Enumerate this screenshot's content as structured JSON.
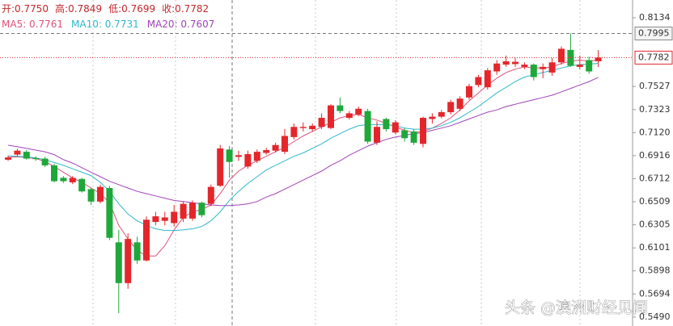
{
  "chart_data": {
    "type": "candlestick",
    "ohlc_header": [
      "开:0.7750",
      "高:0.7849",
      "低:0.7699",
      "收:0.7782"
    ],
    "header_color": "#c0282c",
    "watermark": "头条 @澳洲财经见闻",
    "up_color": "#e4262b",
    "down_color": "#1fa83a",
    "open": [
      0.688,
      0.6925,
      0.695,
      0.6895,
      0.689,
      0.683,
      0.672,
      0.668,
      0.671,
      0.662,
      0.651,
      0.663,
      0.615,
      0.579,
      0.615,
      0.599,
      0.633,
      0.634,
      0.632,
      0.636,
      0.636,
      0.65,
      0.649,
      0.665,
      0.697,
      0.6905,
      0.682,
      0.687,
      0.694,
      0.696,
      0.695,
      0.708,
      0.716,
      0.715,
      0.717,
      0.716,
      0.736,
      0.725,
      0.728,
      0.731,
      0.703,
      0.724,
      0.712,
      0.714,
      0.713,
      0.702,
      0.724,
      0.726,
      0.73,
      0.733,
      0.743,
      0.754,
      0.752,
      0.766,
      0.772,
      0.7725,
      0.77,
      0.772,
      0.768,
      0.765,
      0.774,
      0.785,
      0.77,
      0.776,
      0.775
    ],
    "high": [
      0.6915,
      0.6975,
      0.6965,
      0.691,
      0.6905,
      0.6845,
      0.6735,
      0.6735,
      0.672,
      0.6635,
      0.666,
      0.665,
      0.626,
      0.623,
      0.62,
      0.638,
      0.642,
      0.642,
      0.648,
      0.651,
      0.652,
      0.651,
      0.666,
      0.701,
      0.7,
      0.696,
      0.696,
      0.697,
      0.6985,
      0.703,
      0.715,
      0.72,
      0.721,
      0.72,
      0.729,
      0.737,
      0.743,
      0.731,
      0.735,
      0.733,
      0.722,
      0.725,
      0.723,
      0.716,
      0.715,
      0.726,
      0.729,
      0.732,
      0.741,
      0.744,
      0.755,
      0.763,
      0.769,
      0.776,
      0.78,
      0.778,
      0.774,
      0.773,
      0.773,
      0.778,
      0.788,
      0.7995,
      0.78,
      0.779,
      0.7849
    ],
    "low": [
      0.687,
      0.691,
      0.688,
      0.687,
      0.6815,
      0.668,
      0.6675,
      0.6665,
      0.659,
      0.648,
      0.6495,
      0.617,
      0.5525,
      0.574,
      0.596,
      0.598,
      0.63,
      0.63,
      0.629,
      0.633,
      0.634,
      0.637,
      0.647,
      0.664,
      0.672,
      0.687,
      0.68,
      0.685,
      0.6925,
      0.6945,
      0.693,
      0.706,
      0.713,
      0.713,
      0.715,
      0.715,
      0.729,
      0.7235,
      0.7265,
      0.702,
      0.701,
      0.713,
      0.7105,
      0.704,
      0.701,
      0.699,
      0.72,
      0.7245,
      0.728,
      0.731,
      0.741,
      0.752,
      0.75,
      0.763,
      0.77,
      0.77,
      0.768,
      0.758,
      0.76,
      0.762,
      0.772,
      0.77,
      0.768,
      0.764,
      0.7699
    ],
    "close": [
      0.69,
      0.696,
      0.689,
      0.6885,
      0.683,
      0.669,
      0.669,
      0.672,
      0.66,
      0.651,
      0.664,
      0.619,
      0.579,
      0.618,
      0.599,
      0.635,
      0.638,
      0.637,
      0.642,
      0.649,
      0.65,
      0.639,
      0.664,
      0.698,
      0.686,
      0.692,
      0.693,
      0.695,
      0.6965,
      0.701,
      0.709,
      0.717,
      0.717,
      0.718,
      0.725,
      0.736,
      0.731,
      0.729,
      0.733,
      0.704,
      0.717,
      0.715,
      0.721,
      0.707,
      0.703,
      0.725,
      0.726,
      0.73,
      0.739,
      0.742,
      0.753,
      0.761,
      0.767,
      0.773,
      0.775,
      0.7745,
      0.772,
      0.761,
      0.77,
      0.774,
      0.786,
      0.771,
      0.772,
      0.766,
      0.7782
    ],
    "series": [
      {
        "name": "MA5: 0.7761",
        "color": "#e0507a",
        "values": [
          0.6901,
          0.6905,
          0.69,
          0.689,
          0.6865,
          0.682,
          0.677,
          0.672,
          0.668,
          0.663,
          0.658,
          0.65,
          0.63,
          0.618,
          0.608,
          0.603,
          0.603,
          0.612,
          0.626,
          0.637,
          0.642,
          0.644,
          0.648,
          0.658,
          0.67,
          0.678,
          0.683,
          0.687,
          0.691,
          0.695,
          0.699,
          0.704,
          0.709,
          0.713,
          0.717,
          0.721,
          0.725,
          0.727,
          0.728,
          0.725,
          0.723,
          0.72,
          0.717,
          0.714,
          0.712,
          0.713,
          0.716,
          0.72,
          0.725,
          0.732,
          0.74,
          0.747,
          0.754,
          0.76,
          0.765,
          0.768,
          0.77,
          0.769,
          0.769,
          0.77,
          0.773,
          0.775,
          0.776,
          0.775,
          0.7761
        ]
      },
      {
        "name": "MA10: 0.7731",
        "color": "#2fb8cc",
        "values": [
          0.6915,
          0.691,
          0.6905,
          0.6895,
          0.688,
          0.6855,
          0.683,
          0.68,
          0.677,
          0.674,
          0.668,
          0.66,
          0.649,
          0.64,
          0.634,
          0.63,
          0.627,
          0.6255,
          0.6255,
          0.626,
          0.627,
          0.629,
          0.634,
          0.642,
          0.652,
          0.66,
          0.667,
          0.673,
          0.679,
          0.683,
          0.687,
          0.691,
          0.694,
          0.698,
          0.702,
          0.707,
          0.711,
          0.715,
          0.718,
          0.719,
          0.719,
          0.719,
          0.718,
          0.716,
          0.715,
          0.715,
          0.716,
          0.718,
          0.721,
          0.725,
          0.73,
          0.735,
          0.741,
          0.747,
          0.752,
          0.757,
          0.761,
          0.763,
          0.765,
          0.767,
          0.769,
          0.771,
          0.772,
          0.7725,
          0.7731
        ]
      },
      {
        "name": "MA20: 0.7607",
        "color": "#a044b8",
        "values": [
          0.7008,
          0.6995,
          0.698,
          0.6965,
          0.695,
          0.6925,
          0.688,
          0.685,
          0.681,
          0.677,
          0.673,
          0.669,
          0.666,
          0.663,
          0.66,
          0.658,
          0.656,
          0.654,
          0.652,
          0.651,
          0.65,
          0.649,
          0.648,
          0.6475,
          0.6475,
          0.648,
          0.649,
          0.651,
          0.655,
          0.658,
          0.662,
          0.666,
          0.67,
          0.674,
          0.678,
          0.683,
          0.687,
          0.692,
          0.696,
          0.7,
          0.703,
          0.706,
          0.708,
          0.7095,
          0.711,
          0.712,
          0.714,
          0.716,
          0.718,
          0.721,
          0.724,
          0.727,
          0.73,
          0.732,
          0.735,
          0.737,
          0.739,
          0.741,
          0.743,
          0.745,
          0.748,
          0.751,
          0.754,
          0.757,
          0.7607
        ]
      }
    ],
    "ylim": [
      0.5411,
      0.8291
    ],
    "yticks": [
      0.8134,
      0.7527,
      0.7323,
      {
        "value": 0.712,
        "label": "0.7120"
      },
      0.6916,
      0.6712,
      0.6509,
      0.6305,
      0.6101,
      0.5898,
      0.5694,
      {
        "value": 0.549,
        "label": "0.5490"
      }
    ],
    "crosshair_price": 0.7995,
    "last_price": 0.7782,
    "last_price_color": "#e4262b"
  }
}
